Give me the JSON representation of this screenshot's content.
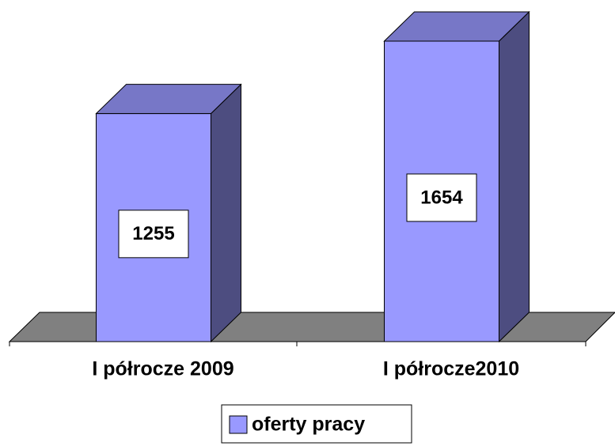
{
  "chart_data": {
    "type": "bar3d",
    "categories": [
      "I półrocze 2009",
      "I półrocze2010"
    ],
    "series": [
      {
        "name": "oferty pracy",
        "color": "#9999ff",
        "values": [
          1255,
          1654
        ]
      }
    ],
    "legend": "bottom"
  }
}
